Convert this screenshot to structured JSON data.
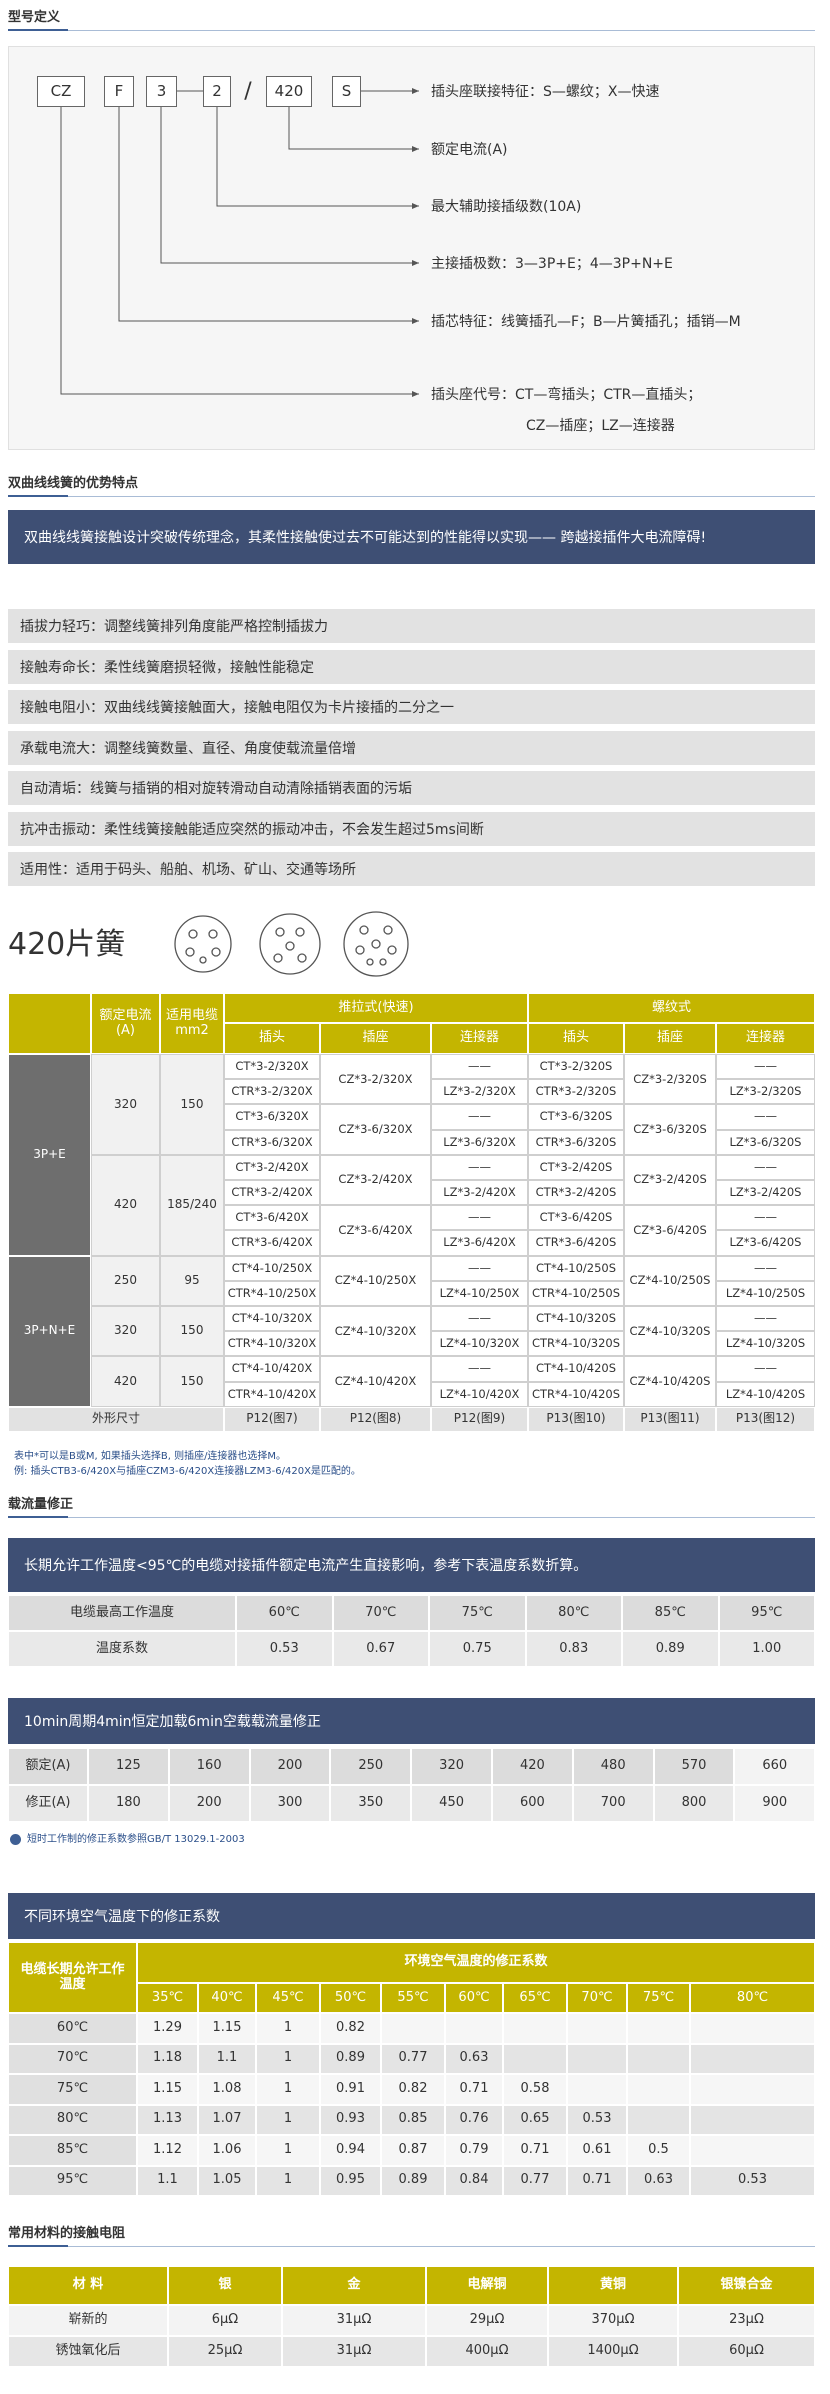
{
  "model": {
    "title": "型号定义",
    "codes": [
      "CZ",
      "F",
      "3",
      "2",
      "/",
      "420",
      "S"
    ],
    "labels": [
      "插头座联接特征：S—螺纹；X—快速",
      "额定电流(A)",
      "最大辅助接插级数(10A)",
      "主接插极数：3—3P+E；4—3P+N+E",
      "插芯特征：线簧插孔—F；B—片簧插孔；插销—M",
      "插头座代号：CT—弯插头；CTR—直插头；",
      "CZ—插座；LZ—连接器"
    ]
  },
  "advantages": {
    "title": "双曲线线簧的优势特点",
    "banner": "双曲线线簧接触设计突破传统理念，其柔性接触使过去不可能达到的性能得以实现—— 跨越接插件大电流障碍!",
    "items": [
      "插拔力轻巧：调整线簧排列角度能严格控制插拔力",
      "接触寿命长：柔性线簧磨损轻微，接触性能稳定",
      "接触电阻小：双曲线线簧接触面大，接触电阻仅为卡片接插的二分之一",
      "承载电流大：调整线簧数量、直径、角度使载流量倍增",
      "自动清垢：线簧与插销的相对旋转滑动自动清除插销表面的污垢",
      "抗冲击振动：柔性线簧接触能适应突然的振动冲击，不会发生超过5ms间断",
      "适用性：适用于码头、船舶、机场、矿山、交通等场所"
    ]
  },
  "spring": {
    "title": "420片簧",
    "table": {
      "head": [
        "额定电流(A)",
        "适用电缆mm2"
      ],
      "styles": [
        "推拉式(快速)",
        "螺纹式"
      ],
      "sub": [
        "插头",
        "插座",
        "连接器",
        "插头",
        "插座",
        "连接器"
      ],
      "groups": [
        {
          "name": "3P+E",
          "rows": [
            {
              "current": "320",
              "cable": "150",
              "push": {
                "plug": [
                  "CT*3-2/320X",
                  "CTR*3-2/320X",
                  "CT*3-6/320X",
                  "CTR*3-6/320X"
                ],
                "socket": [
                  "CZ*3-2/320X",
                  "CZ*3-6/320X"
                ],
                "connector": [
                  "——",
                  "LZ*3-2/320X",
                  "——",
                  "LZ*3-6/320X"
                ]
              },
              "screw": {
                "plug": [
                  "CT*3-2/320S",
                  "CTR*3-2/320S",
                  "CT*3-6/320S",
                  "CTR*3-6/320S"
                ],
                "socket": [
                  "CZ*3-2/320S",
                  "CZ*3-6/320S"
                ],
                "connector": [
                  "——",
                  "LZ*3-2/320S",
                  "——",
                  "LZ*3-6/320S"
                ]
              }
            },
            {
              "current": "420",
              "cable": "185/240",
              "push": {
                "plug": [
                  "CT*3-2/420X",
                  "CTR*3-2/420X",
                  "CT*3-6/420X",
                  "CTR*3-6/420X"
                ],
                "socket": [
                  "CZ*3-2/420X",
                  "CZ*3-6/420X"
                ],
                "connector": [
                  "——",
                  "LZ*3-2/420X",
                  "——",
                  "LZ*3-6/420X"
                ]
              },
              "screw": {
                "plug": [
                  "CT*3-2/420S",
                  "CTR*3-2/420S",
                  "CT*3-6/420S",
                  "CTR*3-6/420S"
                ],
                "socket": [
                  "CZ*3-2/420S",
                  "CZ*3-6/420S"
                ],
                "connector": [
                  "——",
                  "LZ*3-2/420S",
                  "——",
                  "LZ*3-6/420S"
                ]
              }
            }
          ]
        },
        {
          "name": "3P+N+E",
          "rows": [
            {
              "current": "250",
              "cable": "95",
              "push": {
                "plug": [
                  "CT*4-10/250X",
                  "CTR*4-10/250X"
                ],
                "socket": [
                  "CZ*4-10/250X"
                ],
                "connector": [
                  "——",
                  "LZ*4-10/250X"
                ]
              },
              "screw": {
                "plug": [
                  "CT*4-10/250S",
                  "CTR*4-10/250S"
                ],
                "socket": [
                  "CZ*4-10/250S"
                ],
                "connector": [
                  "——",
                  "LZ*4-10/250S"
                ]
              }
            },
            {
              "current": "320",
              "cable": "150",
              "push": {
                "plug": [
                  "CT*4-10/320X",
                  "CTR*4-10/320X"
                ],
                "socket": [
                  "CZ*4-10/320X"
                ],
                "connector": [
                  "——",
                  "LZ*4-10/320X"
                ]
              },
              "screw": {
                "plug": [
                  "CT*4-10/320S",
                  "CTR*4-10/320S"
                ],
                "socket": [
                  "CZ*4-10/320S"
                ],
                "connector": [
                  "——",
                  "LZ*4-10/320S"
                ]
              }
            },
            {
              "current": "420",
              "cable": "150",
              "push": {
                "plug": [
                  "CT*4-10/420X",
                  "CTR*4-10/420X"
                ],
                "socket": [
                  "CZ*4-10/420X"
                ],
                "connector": [
                  "——",
                  "LZ*4-10/420X"
                ]
              },
              "screw": {
                "plug": [
                  "CT*4-10/420S",
                  "CTR*4-10/420S"
                ],
                "socket": [
                  "CZ*4-10/420S"
                ],
                "connector": [
                  "——",
                  "LZ*4-10/420S"
                ]
              }
            }
          ]
        }
      ],
      "footer": {
        "label": "外形尺寸",
        "refs": [
          "P12(图7)",
          "P12(图8)",
          "P12(图9)",
          "P13(图10)",
          "P13(图11)",
          "P13(图12)"
        ]
      }
    },
    "notes": [
      "表中*可以是B或M, 如果插头选择B, 则插座/连接器也选择M。",
      "例: 插头CTB3-6/420X与插座CZM3-6/420X连接器LZM3-6/420X是匹配的。"
    ]
  },
  "correction": {
    "title": "载流量修正",
    "banner": "长期允许工作温度<95℃的电缆对接插件额定电流产生直接影响，参考下表温度系数折算。",
    "rows": [
      [
        "电缆最高工作温度",
        "60℃",
        "70℃",
        "75℃",
        "80℃",
        "85℃",
        "95℃"
      ],
      [
        "温度系数",
        "0.53",
        "0.67",
        "0.75",
        "0.83",
        "0.89",
        "1.00"
      ]
    ]
  },
  "cyclic": {
    "banner": "10min周期4min恒定加载6min空载载流量修正",
    "rows": [
      [
        "额定(A)",
        "125",
        "160",
        "200",
        "250",
        "320",
        "420",
        "480",
        "570",
        "660"
      ],
      [
        "修正(A)",
        "180",
        "200",
        "300",
        "350",
        "450",
        "600",
        "700",
        "800",
        "900"
      ]
    ],
    "note": "短时工作制的修正系数参照GB/T 13029.1-2003"
  },
  "ambient": {
    "banner": "不同环境空气温度下的修正系数",
    "corner": "电缆长期允许工作温度",
    "span": "环境空气温度的修正系数",
    "temps": [
      "35℃",
      "40℃",
      "45℃",
      "50℃",
      "55℃",
      "60℃",
      "65℃",
      "70℃",
      "75℃",
      "80℃"
    ],
    "rows": [
      {
        "label": "60℃",
        "values": [
          1.29,
          1.15,
          1,
          0.82
        ]
      },
      {
        "label": "70℃",
        "values": [
          1.18,
          1.1,
          1,
          0.89,
          0.77,
          0.63
        ]
      },
      {
        "label": "75℃",
        "values": [
          1.15,
          1.08,
          1,
          0.91,
          0.82,
          0.71,
          0.58
        ]
      },
      {
        "label": "80℃",
        "values": [
          1.13,
          1.07,
          1,
          0.93,
          0.85,
          0.76,
          0.65,
          0.53
        ]
      },
      {
        "label": "85℃",
        "values": [
          1.12,
          1.06,
          1,
          0.94,
          0.87,
          0.79,
          0.71,
          0.61,
          0.5
        ]
      },
      {
        "label": "95℃",
        "values": [
          1.1,
          1.05,
          1,
          0.95,
          0.89,
          0.84,
          0.77,
          0.71,
          0.63,
          0.53
        ]
      }
    ]
  },
  "resistance": {
    "title": "常用材料的接触电阻",
    "header": [
      "材 料",
      "银",
      "金",
      "电解铜",
      "黄铜",
      "银镍合金"
    ],
    "rows": [
      [
        "崭新的",
        "6μΩ",
        "31μΩ",
        "29μΩ",
        "370μΩ",
        "23μΩ"
      ],
      [
        "锈蚀氧化后",
        "25μΩ",
        "31μΩ",
        "400μΩ",
        "1400μΩ",
        "60μΩ"
      ]
    ]
  }
}
